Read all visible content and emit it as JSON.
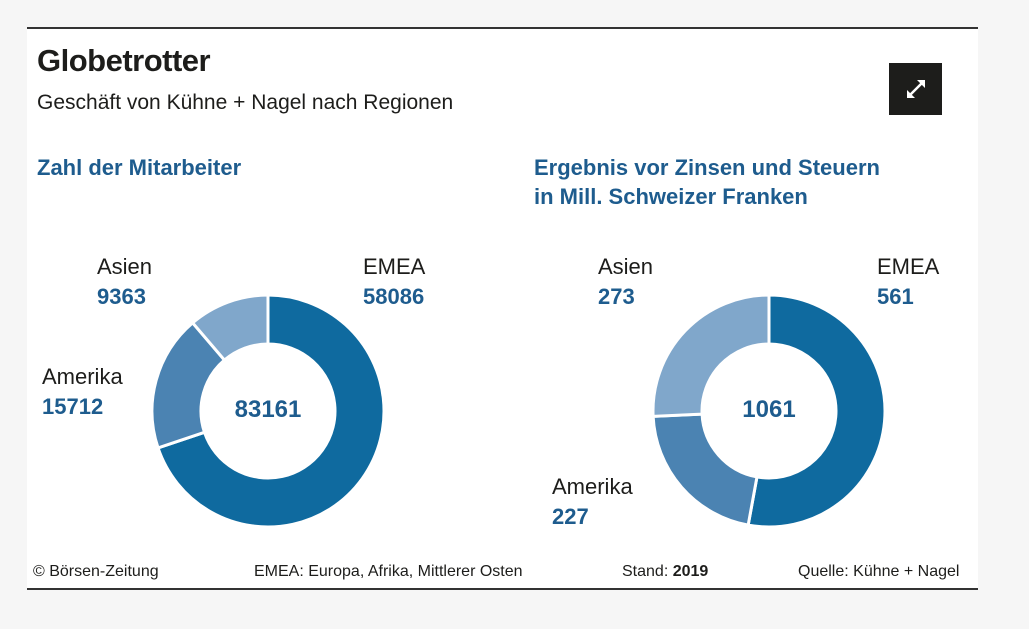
{
  "header": {
    "title": "Globetrotter",
    "subtitle": "Geschäft von Kühne + Nagel nach Regionen",
    "expand_icon": "expand-arrows-icon"
  },
  "chart_data": [
    {
      "type": "pie",
      "title": "Zahl der Mitarbeiter",
      "title_line2": "",
      "total": "83161",
      "categories": [
        "EMEA",
        "Amerika",
        "Asien"
      ],
      "values": [
        58086,
        15712,
        9363
      ],
      "value_labels": [
        "58086",
        "15712",
        "9363"
      ],
      "colors": [
        "#0f6a9f",
        "#4b83b2",
        "#80a7cb"
      ]
    },
    {
      "type": "pie",
      "title": "Ergebnis vor Zinsen und Steuern",
      "title_line2": "in Mill. Schweizer Franken",
      "total": "1061",
      "categories": [
        "EMEA",
        "Amerika",
        "Asien"
      ],
      "values": [
        561,
        227,
        273
      ],
      "value_labels": [
        "561",
        "227",
        "273"
      ],
      "colors": [
        "#0f6a9f",
        "#4b83b2",
        "#80a7cb"
      ]
    }
  ],
  "footer": {
    "copyright": "© Börsen-Zeitung",
    "note": "EMEA: Europa, Afrika, Mittlerer Osten",
    "stand_label": "Stand:",
    "stand_year": "2019",
    "source": "Quelle: Kühne + Nagel"
  }
}
